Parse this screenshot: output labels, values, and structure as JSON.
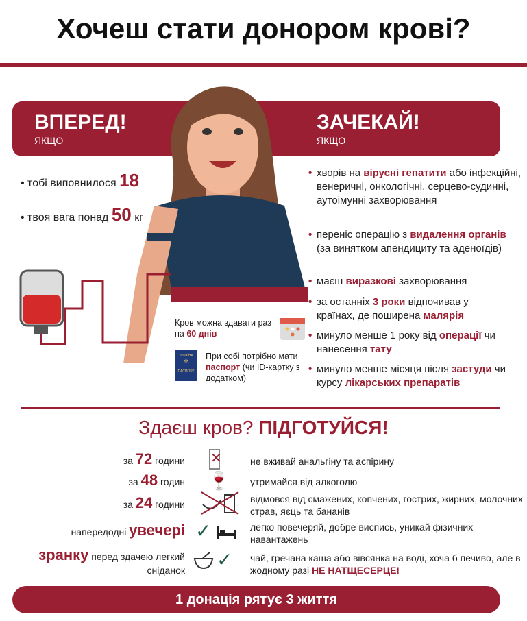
{
  "title": "Хочеш стати донором крові?",
  "go": {
    "heading": "ВПЕРЕД!",
    "sub": "ЯКЩО",
    "items": [
      {
        "pre": "тобі виповнилося",
        "big": "18",
        "post": ""
      },
      {
        "pre": "твоя вага понад",
        "big": "50",
        "post": "кг"
      }
    ]
  },
  "wait": {
    "heading": "ЗАЧЕКАЙ!",
    "sub": "ЯКЩО",
    "items": [
      {
        "a": "хворів на ",
        "b": "вірусні гепатити",
        "c": " або інфекційні, венеричні, онкологічні, серцево-судинні, аутоімунні захворювання"
      },
      {
        "a": "переніс операцію з ",
        "b": "видалення органів",
        "c": " (за винятком апендициту та аденоїдів)"
      },
      {
        "a": "маєш ",
        "b": "виразкові",
        "c": " захворювання"
      },
      {
        "a": "за останніх ",
        "b": "3 роки",
        "c": " відпочивав у країнах, де поширена ",
        "d": "малярія"
      },
      {
        "a": "минуло менше 1 року від ",
        "b": "операції",
        "c": " чи нанесення ",
        "d": "тату"
      },
      {
        "a": "минуло менше місяця після ",
        "b": "застуди",
        "c": " чи курсу ",
        "d": "лікарських препаратів"
      }
    ]
  },
  "notes": {
    "interval": {
      "a": "Кров можна здавати раз на ",
      "b": "60 днів"
    },
    "passport": {
      "a": "При собі потрібно мати ",
      "b": "паспорт",
      "c": " (чи ID-картку з додатком)",
      "label_top": "УКРАЇНА",
      "label_bottom": "ПАСПОРТ"
    }
  },
  "prepare": {
    "a": "Здаєш кров? ",
    "b": "ПІДГОТУЙСЯ!",
    "rows": [
      {
        "pre": "за ",
        "big": "72",
        "post": " години",
        "icon": "no-pills-icon",
        "text": "не вживай анальгіну та аспірину"
      },
      {
        "pre": "за ",
        "big": "48",
        "post": " годин",
        "icon": "no-alcohol-icon",
        "text": "утримайся від алкоголю"
      },
      {
        "pre": "за ",
        "big": "24",
        "post": " години",
        "icon": "no-food-icon",
        "text": "відмовся від смажених, копчених, гострих, жирних, молочних страв, яєць та бананів"
      },
      {
        "pre": "напередодні ",
        "big": "увечері",
        "post": "",
        "icon": "bed-icon",
        "text": "легко повечеряй, добре виспись, уникай фізичних навантажень"
      },
      {
        "pre": "",
        "big": "зранку",
        "post": " перед здачею легкий сніданок",
        "icon": "bowl-icon",
        "text": "чай, гречана каша або вівсянка на воді, хоча б печиво, але в жодному разі ",
        "text_hl": "НЕ НАТЩЕСЕРЦЕ!"
      }
    ]
  },
  "footer": "1 донація рятує 3 життя",
  "colors": {
    "accent": "#9a1f33",
    "shirt": "#1f3a57",
    "check": "#1d5a46"
  }
}
